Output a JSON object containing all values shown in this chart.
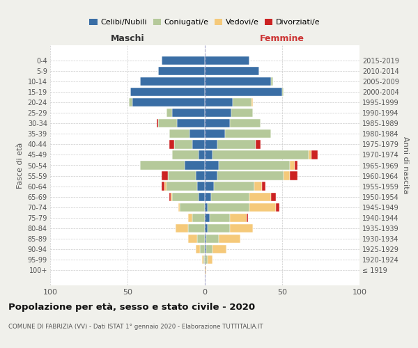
{
  "age_groups": [
    "100+",
    "95-99",
    "90-94",
    "85-89",
    "80-84",
    "75-79",
    "70-74",
    "65-69",
    "60-64",
    "55-59",
    "50-54",
    "45-49",
    "40-44",
    "35-39",
    "30-34",
    "25-29",
    "20-24",
    "15-19",
    "10-14",
    "5-9",
    "0-4"
  ],
  "birth_years": [
    "≤ 1919",
    "1920-1924",
    "1925-1929",
    "1930-1934",
    "1935-1939",
    "1940-1944",
    "1945-1949",
    "1950-1954",
    "1955-1959",
    "1960-1964",
    "1965-1969",
    "1970-1974",
    "1975-1979",
    "1980-1984",
    "1985-1989",
    "1990-1994",
    "1995-1999",
    "2000-2004",
    "2005-2009",
    "2010-2014",
    "2015-2019"
  ],
  "maschi": {
    "celibe": [
      0,
      0,
      0,
      0,
      0,
      0,
      0,
      4,
      5,
      6,
      13,
      4,
      8,
      10,
      18,
      21,
      47,
      48,
      42,
      30,
      28
    ],
    "coniugato": [
      0,
      1,
      3,
      5,
      11,
      8,
      16,
      17,
      20,
      18,
      29,
      17,
      12,
      13,
      12,
      4,
      2,
      0,
      0,
      0,
      0
    ],
    "vedovo": [
      0,
      1,
      3,
      6,
      8,
      3,
      1,
      1,
      1,
      0,
      0,
      0,
      0,
      0,
      0,
      0,
      0,
      0,
      0,
      0,
      0
    ],
    "divorziato": [
      0,
      0,
      0,
      0,
      0,
      0,
      0,
      1,
      2,
      4,
      0,
      0,
      3,
      0,
      1,
      0,
      0,
      0,
      0,
      0,
      0
    ]
  },
  "femmine": {
    "nubile": [
      0,
      0,
      1,
      1,
      2,
      3,
      2,
      4,
      6,
      8,
      9,
      5,
      8,
      13,
      16,
      17,
      18,
      50,
      43,
      35,
      29
    ],
    "coniugata": [
      0,
      2,
      4,
      8,
      14,
      13,
      27,
      25,
      26,
      43,
      46,
      62,
      25,
      30,
      20,
      14,
      12,
      1,
      1,
      0,
      0
    ],
    "vedova": [
      1,
      3,
      9,
      14,
      15,
      11,
      17,
      14,
      5,
      4,
      3,
      2,
      0,
      0,
      0,
      0,
      1,
      0,
      0,
      0,
      0
    ],
    "divorziata": [
      0,
      0,
      0,
      0,
      0,
      1,
      2,
      3,
      2,
      5,
      2,
      4,
      3,
      0,
      0,
      0,
      0,
      0,
      0,
      0,
      0
    ]
  },
  "colors": {
    "celibe": "#3a6ea5",
    "coniugato": "#b5c99a",
    "vedovo": "#f5c97a",
    "divorziato": "#cc2222"
  },
  "xlim": 100,
  "title": "Popolazione per età, sesso e stato civile - 2020",
  "subtitle": "COMUNE DI FABRIZIA (VV) - Dati ISTAT 1° gennaio 2020 - Elaborazione TUTTITALIA.IT",
  "ylabel_left": "Fasce di età",
  "ylabel_right": "Anni di nascita",
  "xlabel_left": "Maschi",
  "xlabel_right": "Femmine",
  "legend_labels": [
    "Celibi/Nubili",
    "Coniugati/e",
    "Vedovi/e",
    "Divorziati/e"
  ],
  "bg_color": "#f0f0eb",
  "bar_bg_color": "#ffffff",
  "grid_color": "#cccccc",
  "maschi_label_color": "#333333",
  "femmine_label_color": "#cc3333"
}
